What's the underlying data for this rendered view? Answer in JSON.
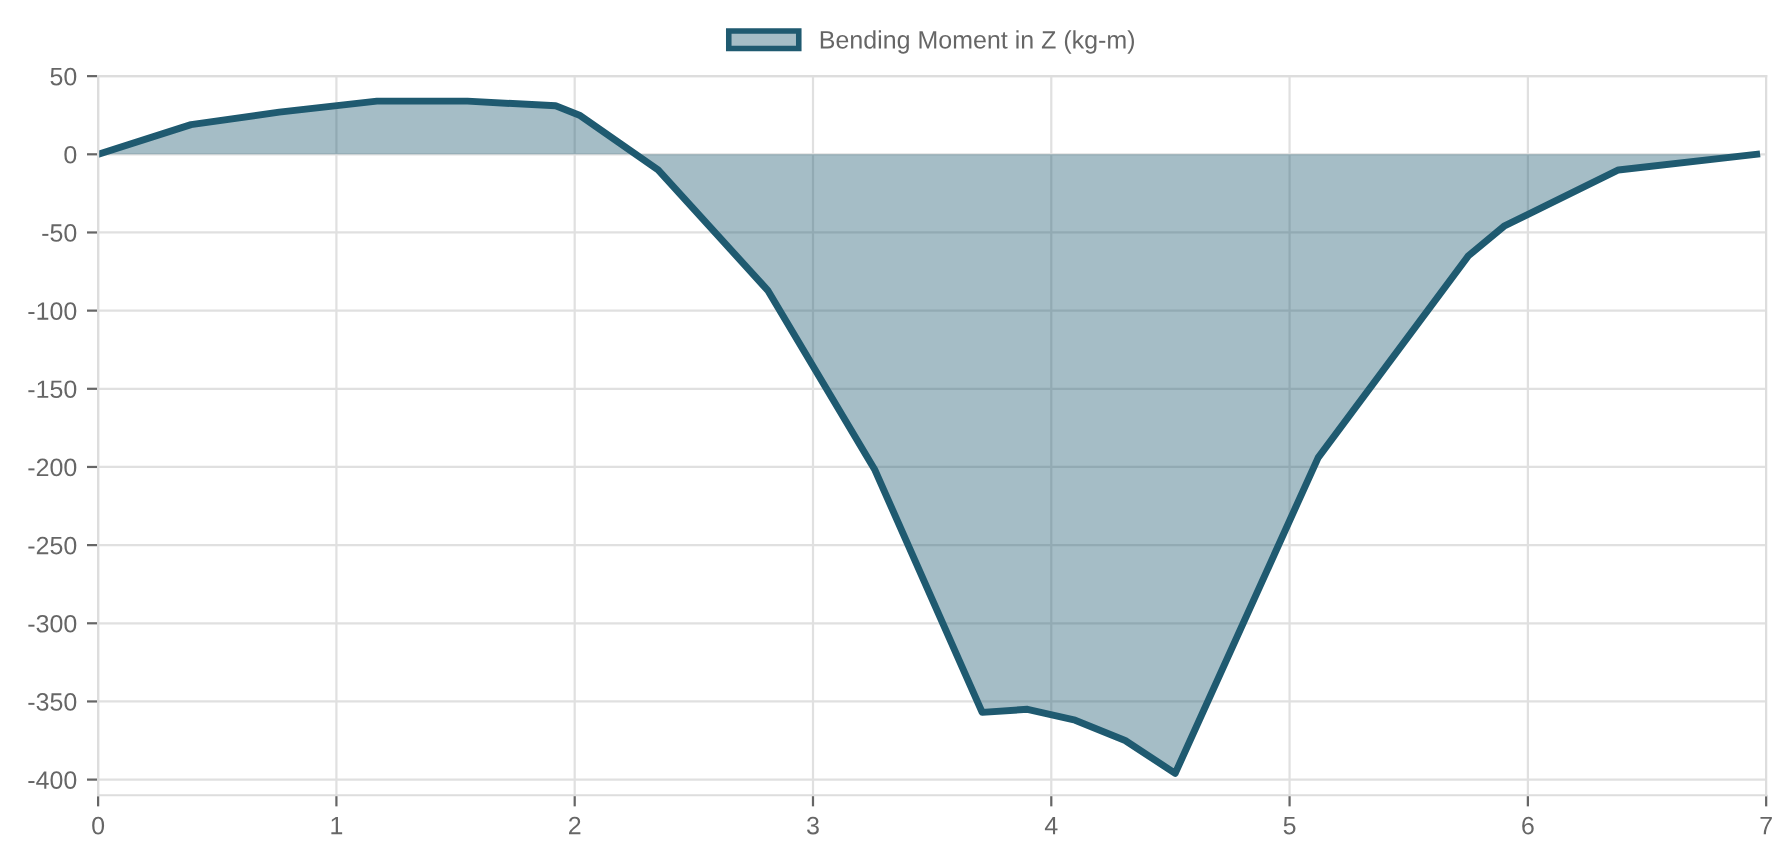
{
  "chart_data": {
    "type": "area",
    "x": [
      0,
      0.39,
      0.76,
      1.17,
      1.55,
      1.92,
      2.02,
      2.35,
      2.81,
      3.26,
      3.71,
      3.9,
      4.1,
      4.31,
      4.52,
      5.12,
      5.75,
      5.9,
      6.38,
      6.96
    ],
    "series": [
      {
        "name": "Bending Moment in Z (kg-m)",
        "color": "#1f5a70",
        "values": [
          0,
          19,
          27,
          34,
          34,
          31,
          25,
          -10,
          -87,
          -202,
          -357,
          -355,
          -362,
          -375,
          -396,
          -194,
          -65,
          -46,
          -10,
          0
        ]
      }
    ],
    "xlim": [
      0,
      7
    ],
    "xticks": [
      0,
      1,
      2,
      3,
      4,
      5,
      6,
      7
    ],
    "ylim": [
      -410,
      50
    ],
    "yticks": [
      50,
      0,
      -50,
      -100,
      -150,
      -200,
      -250,
      -300,
      -350,
      -400
    ],
    "grid": true,
    "legend": "top",
    "marker": "none",
    "line_style": "solid"
  }
}
